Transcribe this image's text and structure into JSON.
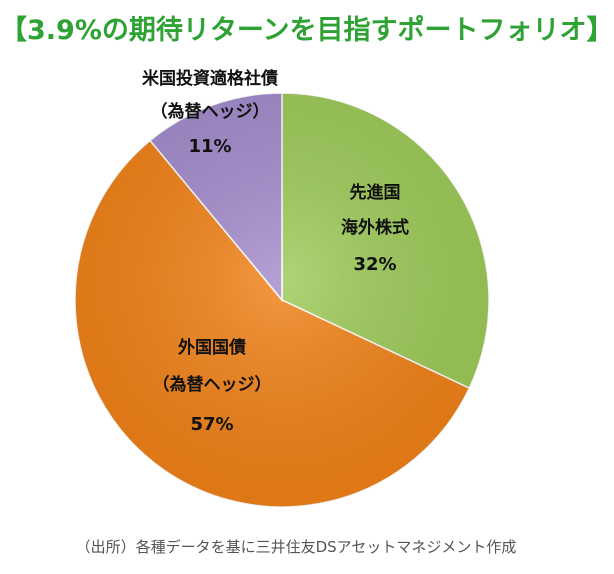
{
  "colors": {
    "title": "#2fa234",
    "developed_equity": "#9ecb59",
    "foreign_bonds": "#f28218",
    "us_ig_bonds": "#a48ccd",
    "slice_stroke": "#ffffff"
  },
  "chart_data": {
    "type": "pie",
    "title": "【3.9%の期待リターンを目指すポートフォリオ】",
    "slices": [
      {
        "key": "developed_equity",
        "label_lines": [
          "先進国",
          "海外株式"
        ],
        "value": 32,
        "pct_label": "32%"
      },
      {
        "key": "foreign_bonds",
        "label_lines": [
          "外国国債",
          "（為替ヘッジ）"
        ],
        "value": 57,
        "pct_label": "57%"
      },
      {
        "key": "us_ig_bonds",
        "label_lines": [
          "米国投資適格社債",
          "（為替ヘッジ）"
        ],
        "value": 11,
        "pct_label": "11%"
      }
    ],
    "start_direction": "top",
    "order": "clockwise"
  },
  "source_note": "（出所）各種データを基に三井住友DSアセットマネジメント作成"
}
